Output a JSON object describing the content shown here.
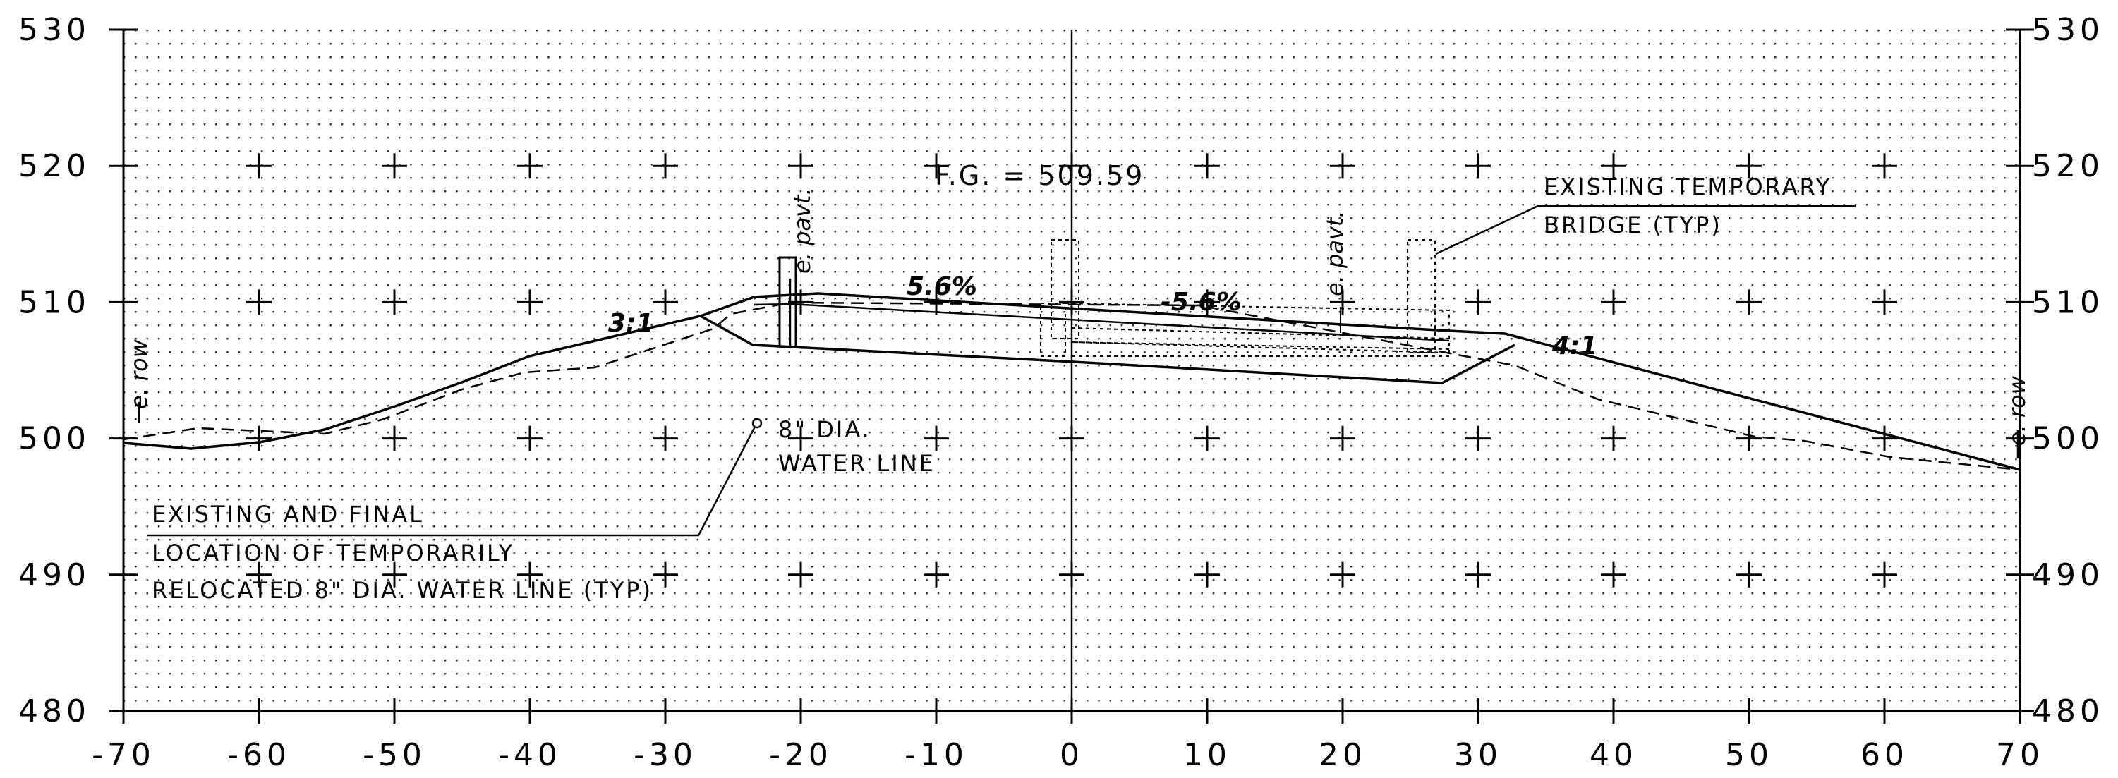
{
  "section": {
    "x_ticks": [
      "-70",
      "-60",
      "-50",
      "-40",
      "-30",
      "-20",
      "-10",
      "0",
      "10",
      "20",
      "30",
      "40",
      "50",
      "60",
      "70"
    ],
    "y_ticks": [
      "480",
      "490",
      "500",
      "510",
      "520",
      "530"
    ],
    "x_range": [
      -70,
      70
    ],
    "y_range": [
      480,
      530
    ],
    "grid_dots": true,
    "plus_markers": true
  },
  "labels": {
    "fg": "F.G. = 509.59",
    "slope_left": "5.6%",
    "slope_right": "-5.6%",
    "ratio_left": "3:1",
    "ratio_right": "4:1",
    "cl_pavt_left": "e. pavt.",
    "cl_pavt_right": "e. pavt.",
    "row_left": "e. row",
    "row_right": "e. row",
    "bridge_line1": "EXISTING TEMPORARY",
    "bridge_line2": "BRIDGE (TYP)",
    "water_line1": "8\" DIA.",
    "water_line2": "WATER LINE",
    "existing_line1": "EXISTING AND FINAL",
    "existing_line2": "LOCATION OF TEMPORARILY",
    "existing_line3": "RELOCATED 8\" DIA. WATER LINE (TYP)"
  }
}
